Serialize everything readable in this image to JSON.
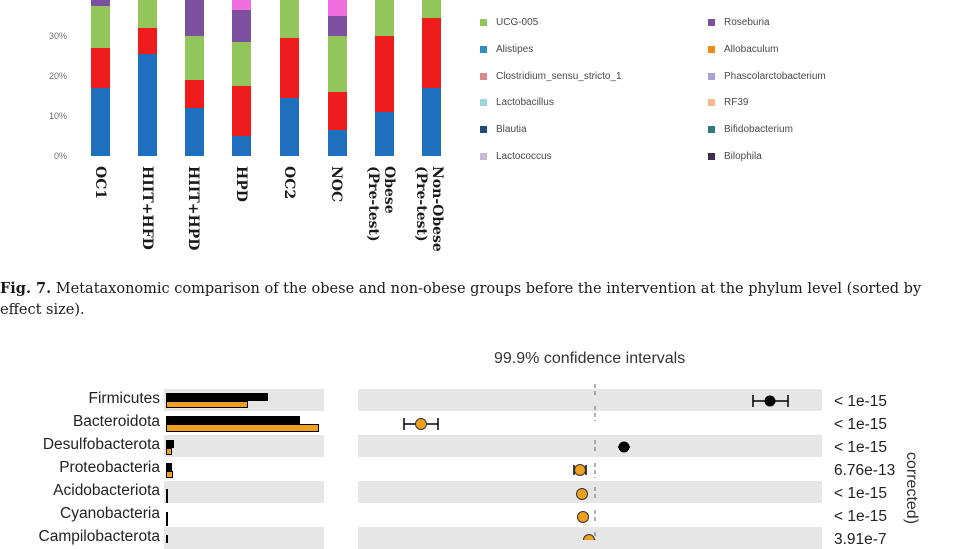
{
  "top_chart": {
    "y_ticks": [
      "30%",
      "20%",
      "10%",
      "0%"
    ],
    "categories": [
      "OC1",
      "HIIT+HFD",
      "HIIT+HPD",
      "HPD",
      "OC2",
      "NOC",
      "Obese\n(Pre-test)",
      "Non-Obese\n(Pre-test)"
    ],
    "chart_data": {
      "type": "bar",
      "categories": [
        "OC1",
        "HIIT+HFD",
        "HIIT+HPD",
        "HPD",
        "OC2",
        "NOC",
        "Obese (Pre-test)",
        "Non-Obese (Pre-test)"
      ],
      "ylim": [
        0,
        40
      ],
      "series": [
        {
          "name": "Alistipes",
          "color": "#1f6fbf",
          "values": [
            17,
            25.5,
            12,
            5,
            14.5,
            6.5,
            11,
            17
          ]
        },
        {
          "name": "",
          "color": "#ee1c1c",
          "values": [
            10,
            6.5,
            7,
            12.5,
            15,
            9.5,
            19,
            17.5
          ]
        },
        {
          "name": "UCG-005",
          "color": "#92c55a",
          "values": [
            10.5,
            8,
            11,
            11,
            10.5,
            14,
            10,
            5
          ]
        },
        {
          "name": "Roseburia",
          "color": "#7c4f9f",
          "values": [
            2.5,
            0,
            10,
            8,
            0,
            5,
            0,
            1
          ]
        },
        {
          "name": "",
          "color": "#f06ee0",
          "values": [
            0,
            0,
            0,
            3.5,
            0,
            4,
            0,
            0
          ]
        }
      ]
    },
    "legend": [
      {
        "label": "UCG-005",
        "color": "#92c55a"
      },
      {
        "label": "Roseburia",
        "color": "#7c4f9f"
      },
      {
        "label": "Alistipes",
        "color": "#2d8fc0"
      },
      {
        "label": "Allobaculum",
        "color": "#f08a1a"
      },
      {
        "label": "Clostridium_sensu_stricto_1",
        "color": "#d98a8a"
      },
      {
        "label": "Phascolarctobacterium",
        "color": "#a9a2d6"
      },
      {
        "label": "Lactobacillus",
        "color": "#9fd3e0"
      },
      {
        "label": "RF39",
        "color": "#f5b98a"
      },
      {
        "label": "Blautia",
        "color": "#1e4b73"
      },
      {
        "label": "Bifidobacterium",
        "color": "#2e7a78"
      },
      {
        "label": "Lactococcus",
        "color": "#c8b8d8"
      },
      {
        "label": "Bilophila",
        "color": "#3b2f4f"
      }
    ]
  },
  "caption": {
    "label": "Fig. 7.",
    "text": " Metataxonomic comparison of the obese and non-obese groups before the intervention at the phylum level (sorted by",
    "text2": "effect size)."
  },
  "bottom_chart": {
    "ci_title": "99.9% confidence intervals",
    "side_label": "corrected)",
    "phyla": [
      "Firmicutes",
      "Bacteroidota",
      "Desulfobacterota",
      "Proteobacteria",
      "Acidobacteriota",
      "Cyanobacteria",
      "Campilobacterota"
    ],
    "p_values": [
      "< 1e-15",
      "< 1e-15",
      "< 1e-15",
      "6.76e-13",
      "< 1e-15",
      "< 1e-15",
      "3.91e-7"
    ],
    "colors": {
      "obese": "#000000",
      "non_obese": "#f0a01e"
    }
  }
}
